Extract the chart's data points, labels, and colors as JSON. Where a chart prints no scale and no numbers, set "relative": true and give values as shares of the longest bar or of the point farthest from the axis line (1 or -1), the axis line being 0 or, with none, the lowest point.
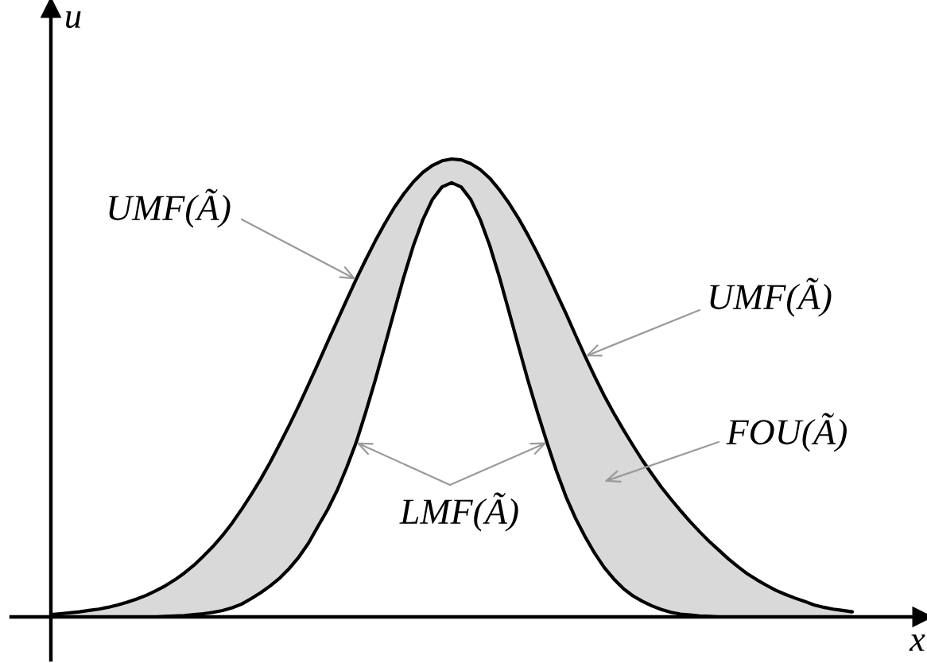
{
  "chart_data": {
    "type": "line",
    "relative": true,
    "xlabel": "x",
    "ylabel": "u",
    "line_style": "solid",
    "categories": [
      null,
      null,
      null,
      null,
      null,
      null,
      null,
      null,
      null,
      null,
      null,
      null,
      null,
      null,
      null,
      null,
      null,
      null,
      null,
      null,
      null,
      null,
      null,
      null,
      null,
      null,
      null,
      null,
      null,
      null,
      null,
      null,
      null,
      null,
      null,
      null,
      null,
      null,
      null,
      null,
      null,
      null,
      null,
      null,
      null,
      null,
      null,
      null,
      null,
      null,
      null,
      null,
      null,
      null,
      null,
      null,
      null,
      null,
      null,
      null,
      null,
      null,
      null,
      null,
      null,
      null,
      null,
      null,
      null,
      null,
      null,
      null,
      null,
      null,
      null,
      null,
      null,
      null,
      null,
      null,
      null,
      null,
      null,
      null,
      null
    ],
    "series": [
      {
        "color": "#000000",
        "values": [
          0.005,
          0.007,
          0.009,
          0.011,
          0.014,
          0.017,
          0.021,
          0.026,
          0.032,
          0.039,
          0.047,
          0.057,
          0.068,
          0.081,
          0.096,
          0.113,
          0.133,
          0.154,
          0.178,
          0.205,
          0.235,
          0.267,
          0.301,
          0.338,
          0.378,
          0.419,
          0.462,
          0.507,
          0.553,
          0.6,
          0.646,
          0.692,
          0.737,
          0.78,
          0.821,
          0.859,
          0.894,
          0.924,
          0.95,
          0.971,
          0.986,
          0.996,
          1.0,
          0.998,
          0.99,
          0.977,
          0.958,
          0.933,
          0.904,
          0.871,
          0.834,
          0.794,
          0.752,
          0.707,
          0.662,
          0.615,
          0.569,
          0.525,
          0.483,
          0.445,
          0.409,
          0.375,
          0.342,
          0.312,
          0.283,
          0.257,
          0.232,
          0.208,
          0.186,
          0.165,
          0.146,
          0.127,
          0.11,
          0.094,
          0.081,
          0.069,
          0.058,
          0.049,
          0.041,
          0.034,
          0.026,
          0.021,
          0.017,
          0.014,
          0.011
        ],
        "lower": [
          0,
          0,
          0,
          0,
          0,
          0,
          0,
          0,
          0,
          0,
          0,
          0,
          0.001,
          0.002,
          0.003,
          0.005,
          0.007,
          0.01,
          0.014,
          0.02,
          0.028,
          0.04,
          0.053,
          0.068,
          0.085,
          0.106,
          0.131,
          0.161,
          0.198,
          0.234,
          0.276,
          0.326,
          0.381,
          0.447,
          0.517,
          0.592,
          0.668,
          0.743,
          0.811,
          0.868,
          0.912,
          0.939,
          0.948,
          0.939,
          0.912,
          0.868,
          0.811,
          0.743,
          0.668,
          0.592,
          0.517,
          0.447,
          0.381,
          0.318,
          0.262,
          0.215,
          0.175,
          0.139,
          0.108,
          0.083,
          0.062,
          0.046,
          0.034,
          0.024,
          0.016,
          0.01,
          0.006,
          0.004,
          0.002,
          0.001,
          0,
          0,
          0,
          0,
          0,
          0,
          0,
          0,
          0,
          0,
          0,
          0,
          0,
          0,
          0
        ],
        "upper": [
          0.005,
          0.007,
          0.009,
          0.011,
          0.014,
          0.017,
          0.021,
          0.026,
          0.032,
          0.039,
          0.047,
          0.057,
          0.068,
          0.081,
          0.096,
          0.113,
          0.133,
          0.154,
          0.178,
          0.205,
          0.235,
          0.267,
          0.301,
          0.338,
          0.378,
          0.419,
          0.462,
          0.507,
          0.553,
          0.6,
          0.646,
          0.692,
          0.737,
          0.78,
          0.821,
          0.859,
          0.894,
          0.924,
          0.95,
          0.971,
          0.986,
          0.996,
          1.0,
          0.998,
          0.99,
          0.977,
          0.958,
          0.933,
          0.904,
          0.871,
          0.834,
          0.794,
          0.752,
          0.707,
          0.662,
          0.615,
          0.569,
          0.525,
          0.483,
          0.445,
          0.409,
          0.375,
          0.342,
          0.312,
          0.283,
          0.257,
          0.232,
          0.208,
          0.186,
          0.165,
          0.146,
          0.127,
          0.11,
          0.094,
          0.081,
          0.069,
          0.058,
          0.049,
          0.041,
          0.034,
          0.026,
          0.021,
          0.017,
          0.014,
          0.011
        ]
      },
      {
        "color": "#000000",
        "values": [
          0,
          0,
          0,
          0,
          0,
          0,
          0,
          0,
          0,
          0,
          0,
          0,
          0.001,
          0.002,
          0.003,
          0.005,
          0.007,
          0.01,
          0.014,
          0.02,
          0.028,
          0.04,
          0.053,
          0.068,
          0.085,
          0.106,
          0.131,
          0.161,
          0.198,
          0.234,
          0.276,
          0.326,
          0.381,
          0.447,
          0.517,
          0.592,
          0.668,
          0.743,
          0.811,
          0.868,
          0.912,
          0.939,
          0.948,
          0.939,
          0.912,
          0.868,
          0.811,
          0.743,
          0.668,
          0.592,
          0.517,
          0.447,
          0.381,
          0.318,
          0.262,
          0.215,
          0.175,
          0.139,
          0.108,
          0.083,
          0.062,
          0.046,
          0.034,
          0.024,
          0.016,
          0.01,
          0.006,
          0.004,
          0.002,
          0.001,
          0,
          0,
          0,
          0,
          0,
          0,
          0,
          0,
          0,
          0,
          0,
          0,
          0,
          0,
          0
        ]
      }
    ],
    "annotations": [
      "UMF(Ã)",
      "UMF(Ã)",
      "LMF(Ã)",
      "FOU(Ã)"
    ]
  }
}
